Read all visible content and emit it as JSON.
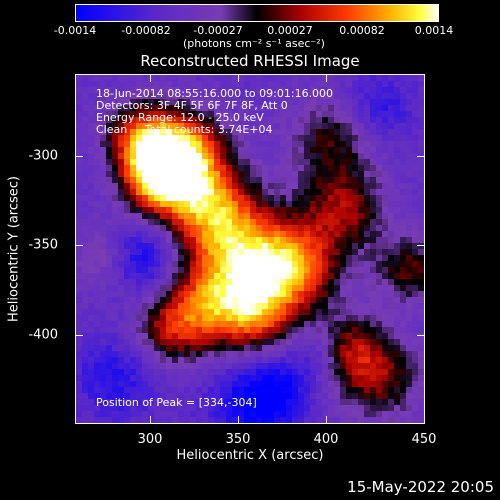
{
  "colorbar": {
    "ticks": [
      "-0.0014",
      "-0.00082",
      "-0.00027",
      "0.00027",
      "0.00082",
      "0.0014"
    ],
    "units": "(photons cm⁻² s⁻¹ asec⁻²)"
  },
  "title": "Reconstructed RHESSI Image",
  "info": {
    "time": "18-Jun-2014 08:55:16.000 to 09:01:16.000",
    "detectors": "Detectors: 3F 4F 5F 6F 7F 8F, Att 0",
    "energy": "Energy Range: 12.0 - 25.0 keV",
    "method": "Clean     Total counts: 3.74E+04",
    "peak": "Position of Peak = [334,-304]"
  },
  "axes": {
    "xlabel": "Heliocentric X (arcsec)",
    "ylabel": "Heliocentric Y (arcsec)",
    "xticks": [
      "300",
      "350",
      "400",
      "450"
    ],
    "yticks": [
      "-300",
      "-350",
      "-400"
    ]
  },
  "footer": "15-May-2022 20:05"
}
